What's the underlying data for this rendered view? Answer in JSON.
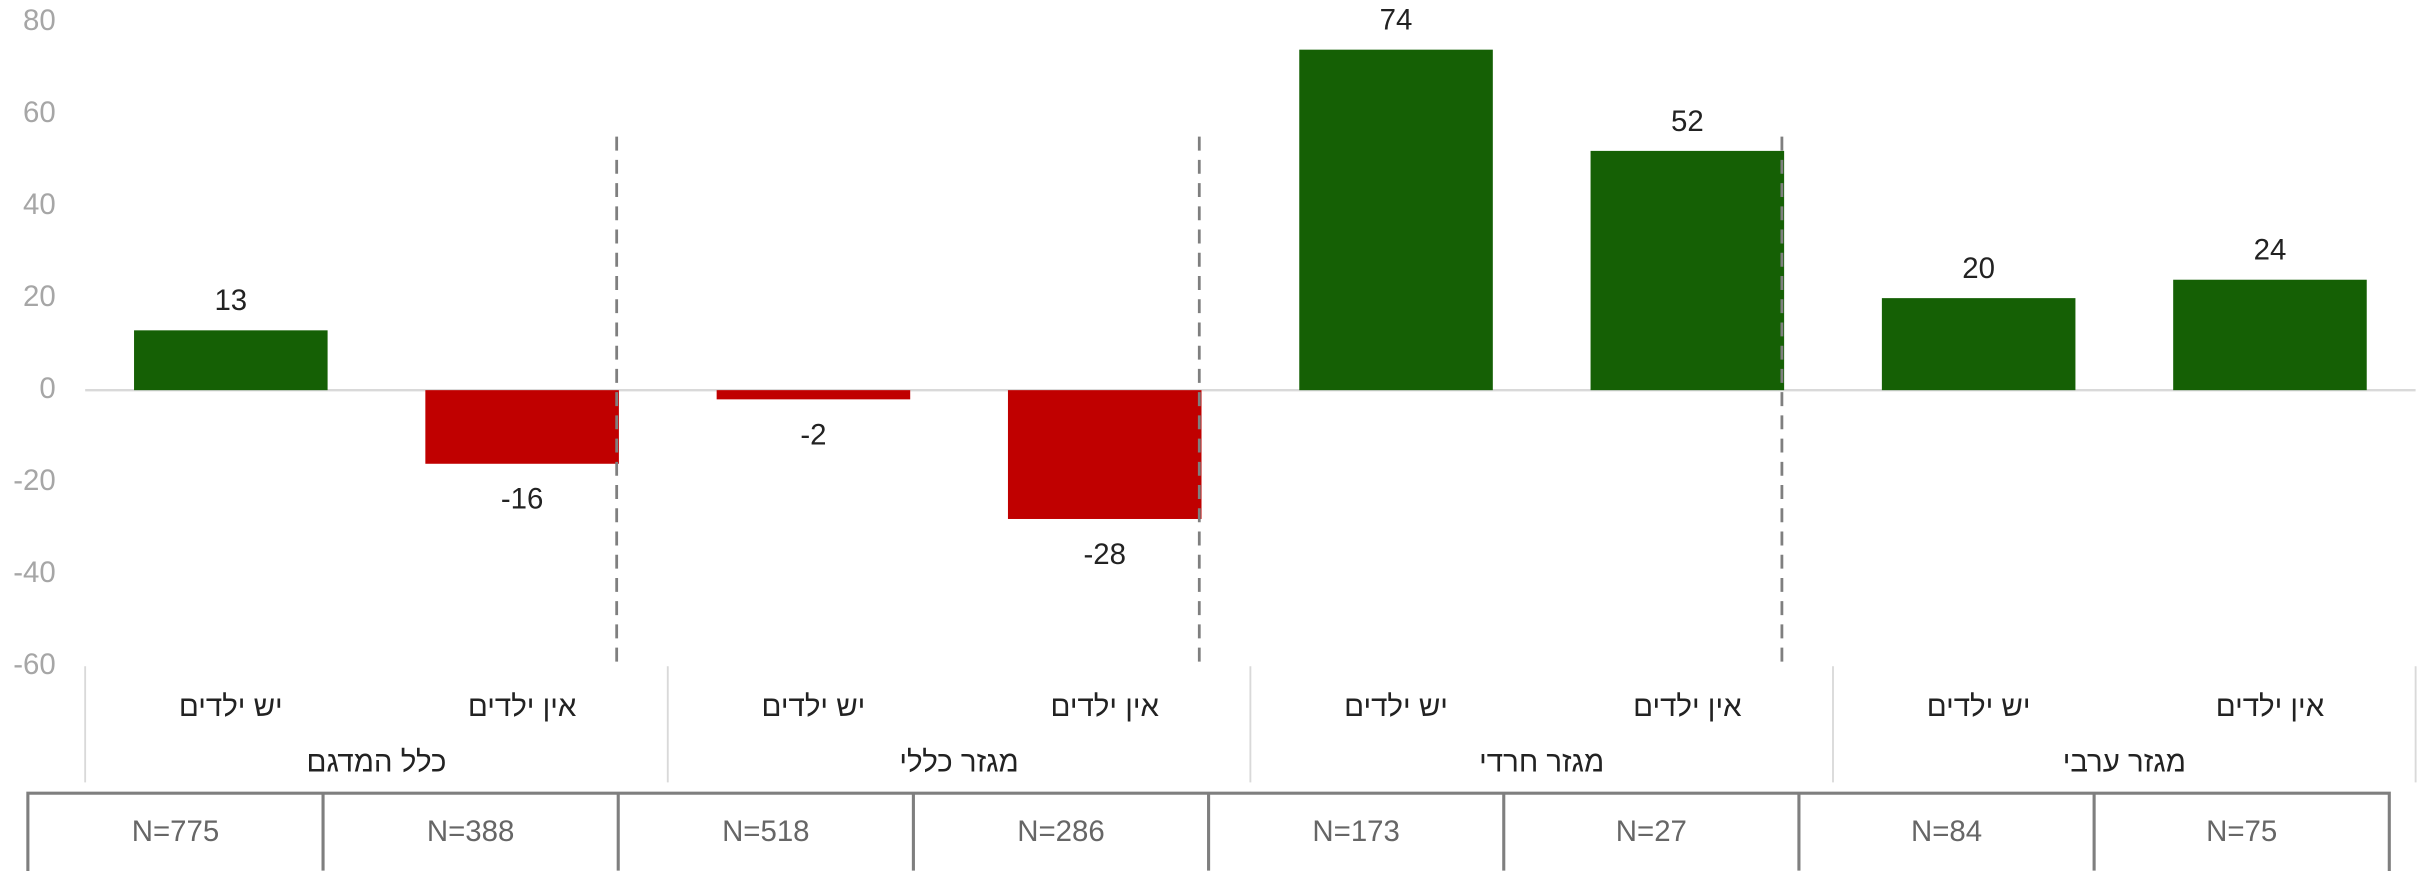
{
  "chart_data": {
    "type": "bar",
    "categories": [
      "יש ילדים",
      "אין ילדים",
      "יש ילדים",
      "אין ילדים",
      "יש ילדים",
      "אין ילדים",
      "יש ילדים",
      "אין ילדים"
    ],
    "groups": [
      "כלל המדגם",
      "מגזר כללי",
      "מגזר חרדי",
      "מגזר ערבי"
    ],
    "values": [
      13,
      -16,
      -2,
      -28,
      74,
      52,
      20,
      24
    ],
    "n_labels": [
      "N=775",
      "N=388",
      "N=518",
      "N=286",
      "N=173",
      "N=27",
      "N=84",
      "N=75"
    ],
    "color_positive": "#156005",
    "color_negative": "#c00000",
    "ylim": [
      -60,
      80
    ],
    "yticks": [
      -60,
      -40,
      -20,
      0,
      20,
      40,
      60,
      80
    ]
  }
}
